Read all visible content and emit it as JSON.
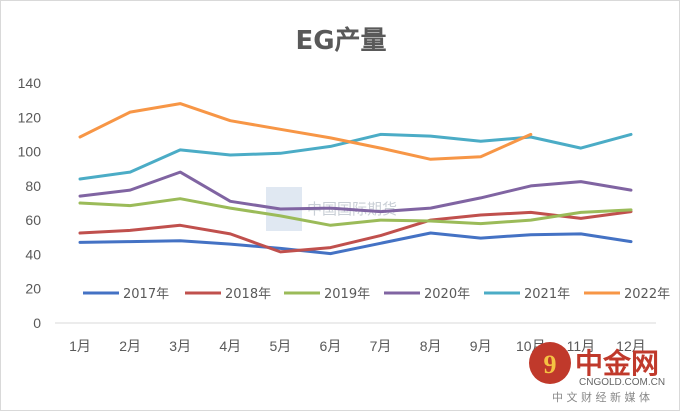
{
  "chart_data": {
    "type": "line",
    "title": "EG产量",
    "categories": [
      "1月",
      "2月",
      "3月",
      "4月",
      "5月",
      "6月",
      "7月",
      "8月",
      "9月",
      "10月",
      "11月",
      "12月"
    ],
    "ylim": [
      0,
      140
    ],
    "yticks": [
      0,
      20,
      40,
      60,
      80,
      100,
      120,
      140
    ],
    "grid": false,
    "legend_position": "bottom-inside",
    "series": [
      {
        "name": "2017年",
        "color": "#4472c4",
        "values": [
          47,
          47.5,
          48,
          46,
          43.5,
          40.5,
          46.5,
          52.5,
          49.5,
          51.5,
          52,
          47.5
        ]
      },
      {
        "name": "2018年",
        "color": "#c0504d",
        "values": [
          52.5,
          54,
          57,
          52,
          41.5,
          44,
          51,
          60,
          63,
          64.5,
          61,
          65
        ]
      },
      {
        "name": "2019年",
        "color": "#9bbb59",
        "values": [
          70,
          68.5,
          72.5,
          67,
          62.5,
          57,
          60,
          59.5,
          58,
          60,
          64.5,
          66
        ]
      },
      {
        "name": "2020年",
        "color": "#8064a2",
        "values": [
          74,
          77.5,
          88,
          71,
          66.5,
          67,
          65,
          67,
          73,
          80,
          82.5,
          77.5
        ]
      },
      {
        "name": "2021年",
        "color": "#4bacc6",
        "values": [
          84,
          88,
          101,
          98,
          99,
          103,
          110,
          109,
          106,
          108.5,
          102,
          110
        ]
      },
      {
        "name": "2022年",
        "color": "#f79646",
        "values": [
          108.5,
          123,
          128,
          118,
          113,
          108,
          102,
          95.5,
          97,
          110,
          null,
          null
        ]
      }
    ]
  },
  "watermark": {
    "text": "中国国际期货"
  },
  "brand": {
    "name_cn": "中金网",
    "site": "CNGOLD.COM.CN",
    "tagline": "中 文 财 经 新 媒 体",
    "glyph": "9"
  }
}
